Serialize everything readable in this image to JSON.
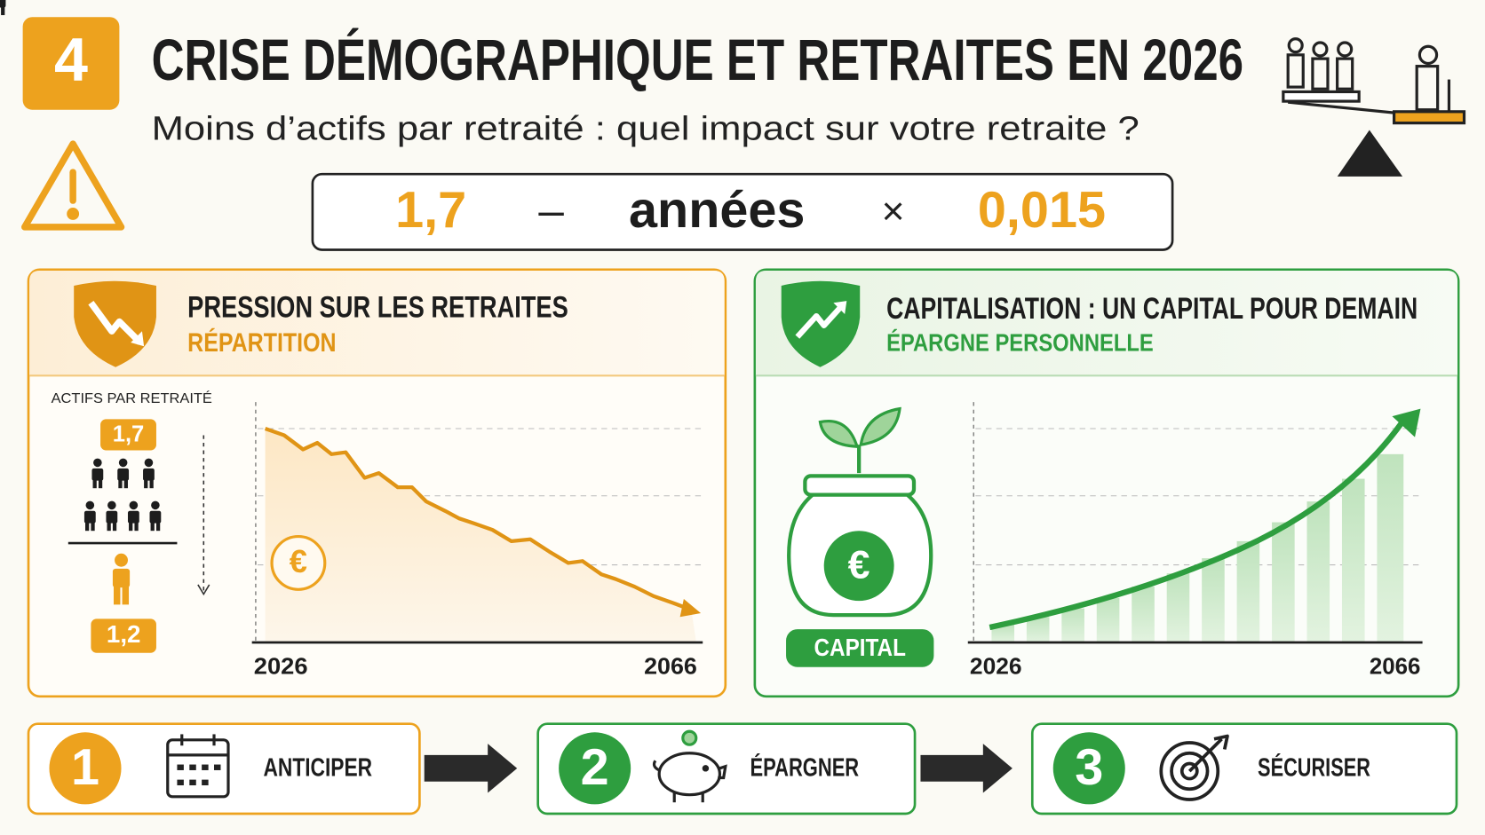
{
  "header": {
    "badge": "4",
    "title": "CRISE DÉMOGRAPHIQUE ET RETRAITES EN 2026",
    "subtitle": "Moins d’actifs par retraité : quel impact sur votre retraite ?"
  },
  "formula": {
    "items": [
      "1,7",
      "–",
      "années",
      "×",
      "0,015"
    ]
  },
  "left_panel": {
    "title": "PRESSION SUR LES RETRAITES",
    "subtitle": "RÉPARTITION",
    "ratio_label": "ACTIFS PAR RETRAITÉ",
    "ratio_from": "1,7",
    "ratio_to": "1,2",
    "currency": "€",
    "x_start": "2026",
    "x_end": "2066"
  },
  "right_panel": {
    "title": "CAPITALISATION : UN CAPITAL POUR DEMAIN",
    "subtitle": "ÉPARGNE PERSONNELLE",
    "currency": "€",
    "jar_label": "CAPITAL",
    "x_start": "2026",
    "x_end": "2066"
  },
  "steps": [
    {
      "number": "1",
      "label": "ANTICIPER"
    },
    {
      "number": "2",
      "label": "ÉPARGNER"
    },
    {
      "number": "3",
      "label": "SÉCURISER"
    }
  ]
}
